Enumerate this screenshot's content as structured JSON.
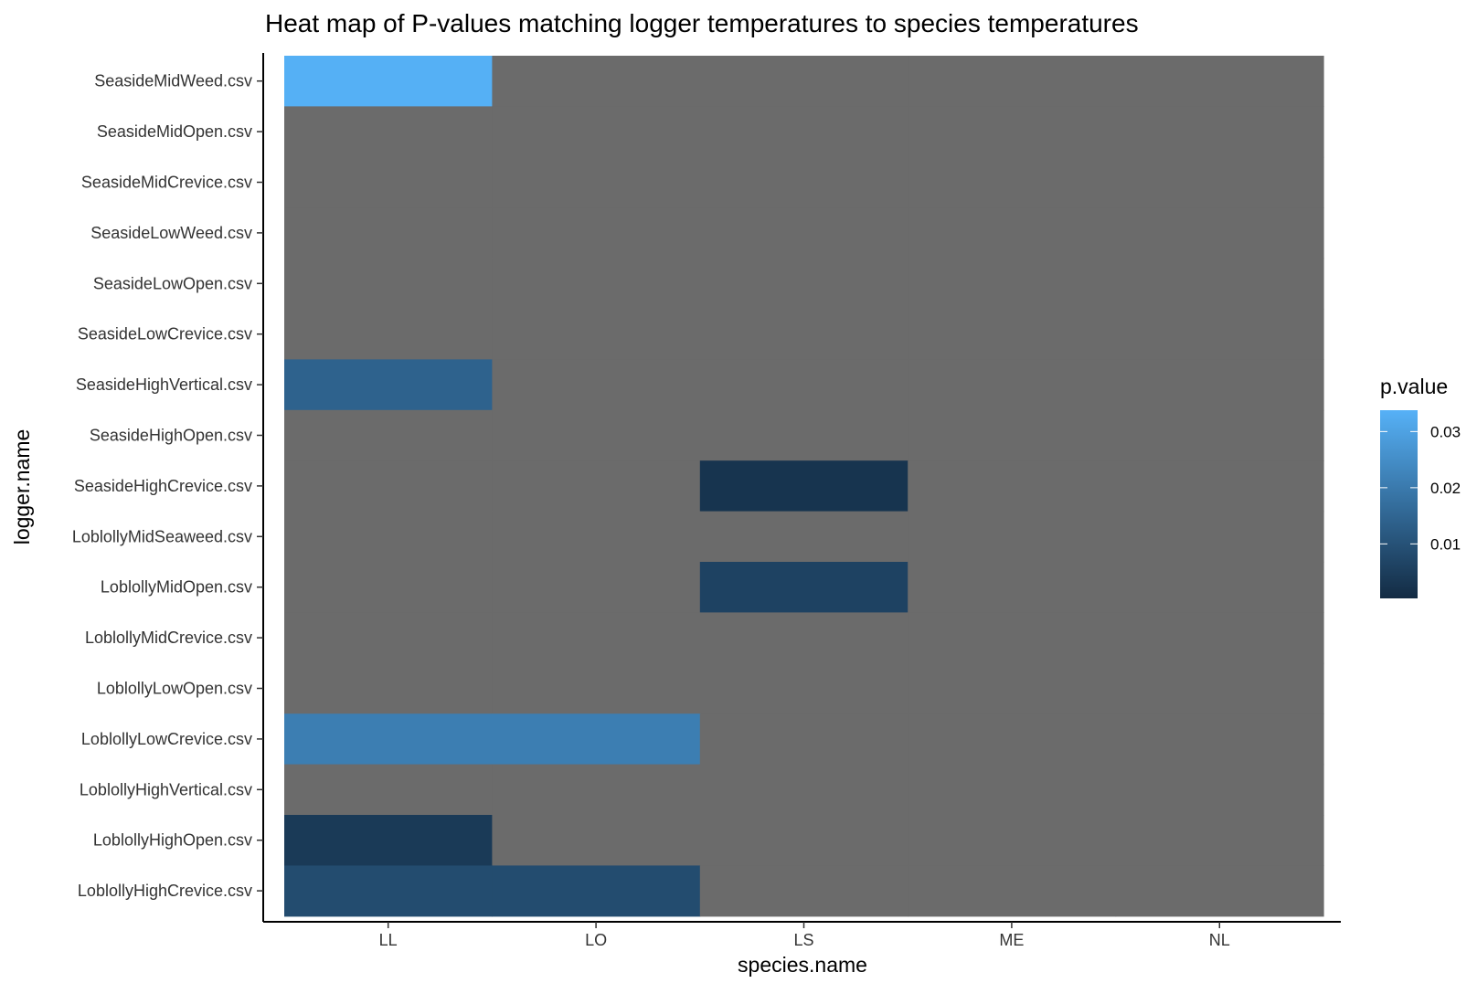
{
  "chart_data": {
    "type": "heatmap",
    "title": "Heat map of P-values matching logger temperatures to species temperatures",
    "xlabel": "species.name",
    "ylabel": "logger.name",
    "x_categories": [
      "LL",
      "LO",
      "LS",
      "ME",
      "NL"
    ],
    "y_categories": [
      "SeasideMidWeed.csv",
      "SeasideMidOpen.csv",
      "SeasideMidCrevice.csv",
      "SeasideLowWeed.csv",
      "SeasideLowOpen.csv",
      "SeasideLowCrevice.csv",
      "SeasideHighVertical.csv",
      "SeasideHighOpen.csv",
      "SeasideHighCrevice.csv",
      "LoblollyMidSeaweed.csv",
      "LoblollyMidOpen.csv",
      "LoblollyMidCrevice.csv",
      "LoblollyLowOpen.csv",
      "LoblollyLowCrevice.csv",
      "LoblollyHighVertical.csv",
      "LoblollyHighOpen.csv",
      "LoblollyHighCrevice.csv"
    ],
    "values": [
      [
        0.0335,
        null,
        null,
        null,
        null
      ],
      [
        null,
        null,
        null,
        null,
        null
      ],
      [
        null,
        null,
        null,
        null,
        null
      ],
      [
        null,
        null,
        null,
        null,
        null
      ],
      [
        null,
        null,
        null,
        null,
        null
      ],
      [
        null,
        null,
        null,
        null,
        null
      ],
      [
        0.014,
        null,
        null,
        null,
        null
      ],
      [
        null,
        null,
        null,
        null,
        null
      ],
      [
        null,
        null,
        0.0025,
        null,
        null
      ],
      [
        null,
        null,
        null,
        null,
        null
      ],
      [
        null,
        null,
        0.006,
        null,
        null
      ],
      [
        null,
        null,
        null,
        null,
        null
      ],
      [
        null,
        null,
        null,
        null,
        null
      ],
      [
        0.021,
        0.021,
        null,
        null,
        null
      ],
      [
        null,
        null,
        null,
        null,
        null
      ],
      [
        0.004,
        null,
        null,
        null,
        null
      ],
      [
        0.0085,
        0.0085,
        null,
        null,
        null
      ]
    ],
    "na_color": "#6b6b6b",
    "legend": {
      "title": "p.value",
      "ticks": [
        "0.01",
        "0.02",
        "0.03"
      ],
      "tick_values": [
        0.01,
        0.02,
        0.03
      ],
      "range": [
        0.0003,
        0.0338
      ],
      "low_color": "#132B43",
      "high_color": "#56B1F7",
      "placement": "right"
    },
    "grid": false
  }
}
